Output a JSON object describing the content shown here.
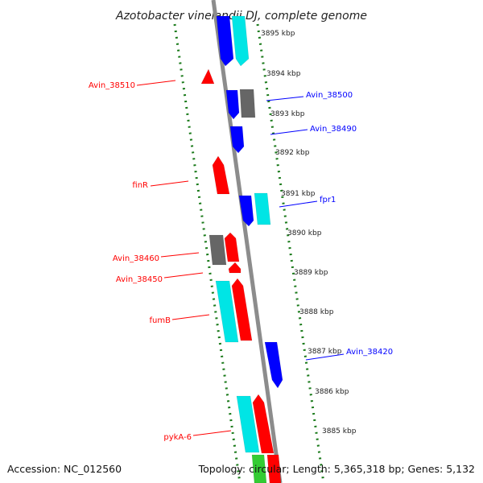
{
  "header": {
    "title": "Azotobacter vinelandii DJ, complete genome"
  },
  "footer": {
    "accession": "Accession: NC_012560",
    "summary": "Topology: circular; Length: 5,365,318 bp; Genes: 5,132"
  },
  "colors": {
    "forward_strand": "#ff0000",
    "reverse_strand": "#0000ff",
    "cyan_feature": "#00e5e5",
    "gray_feature": "#666666",
    "green_feature": "#33cc33",
    "backbone": "#8c8c8c",
    "dotted_track": "#1a7a1a"
  },
  "ticks": [
    "3895 kbp",
    "3894 kbp",
    "3893 kbp",
    "3892 kbp",
    "3891 kbp",
    "3890 kbp",
    "3889 kbp",
    "3888 kbp",
    "3887 kbp",
    "3886 kbp",
    "3885 kbp"
  ],
  "labels_left": [
    "Avin_38510",
    "finR",
    "Avin_38460",
    "Avin_38450",
    "fumB",
    "pykA-6"
  ],
  "labels_right": [
    "Avin_38500",
    "Avin_38490",
    "fpr1",
    "Avin_38420"
  ]
}
